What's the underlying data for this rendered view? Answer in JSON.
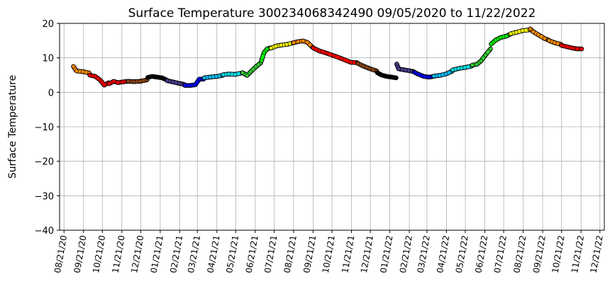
{
  "chart_data": {
    "type": "scatter",
    "title": "Surface Temperature 300234068342490  09/05/2020 to 11/22/2022",
    "xlabel": "",
    "ylabel": "Surface Temperature",
    "ylim": [
      -40,
      20
    ],
    "yticks": [
      20,
      10,
      0,
      -10,
      -20,
      -30,
      -40
    ],
    "yticklabels": [
      "20",
      "10",
      "0",
      "−10",
      "−20",
      "−30",
      "−40"
    ],
    "xlim": [
      "2020-08-14",
      "2022-12-28"
    ],
    "xticks": [
      "2020-08-21",
      "2020-09-21",
      "2020-10-21",
      "2020-11-21",
      "2020-12-21",
      "2021-01-21",
      "2021-02-21",
      "2021-03-21",
      "2021-04-21",
      "2021-05-21",
      "2021-06-21",
      "2021-07-21",
      "2021-08-21",
      "2021-09-21",
      "2021-10-21",
      "2021-11-21",
      "2021-12-21",
      "2022-01-21",
      "2022-02-21",
      "2022-03-21",
      "2022-04-21",
      "2022-05-21",
      "2022-06-21",
      "2022-07-21",
      "2022-08-21",
      "2022-09-21",
      "2022-10-21",
      "2022-11-21",
      "2022-12-21"
    ],
    "xticklabels": [
      "08/21/20",
      "09/21/20",
      "10/21/20",
      "11/21/20",
      "12/21/20",
      "01/21/21",
      "02/21/21",
      "03/21/21",
      "04/21/21",
      "05/21/21",
      "06/21/21",
      "07/21/21",
      "08/21/21",
      "09/21/21",
      "10/21/21",
      "11/21/21",
      "12/21/21",
      "01/21/22",
      "02/21/22",
      "03/21/22",
      "04/21/22",
      "05/21/22",
      "06/21/22",
      "07/21/22",
      "08/21/22",
      "09/21/22",
      "10/21/22",
      "11/21/22",
      "12/21/22"
    ],
    "grid": true,
    "monthly_colors": [
      "#ff8c00",
      "#ff0000",
      "#8b4513",
      "#000000",
      "#483d8b",
      "#0000ff",
      "#00bfff",
      "#00e5ee",
      "#32cd32",
      "#00ff00",
      "#ffff00",
      "#ff8c00"
    ],
    "series": [
      {
        "month": 9,
        "color": "#ff8c00",
        "points": [
          [
            "2020-09-05",
            7.5
          ],
          [
            "2020-09-10",
            6.2
          ],
          [
            "2020-09-20",
            6.0
          ],
          [
            "2020-09-30",
            5.6
          ]
        ]
      },
      {
        "month": 10,
        "color": "#ff0000",
        "points": [
          [
            "2020-10-01",
            5.0
          ],
          [
            "2020-10-10",
            4.6
          ],
          [
            "2020-10-18",
            3.5
          ],
          [
            "2020-10-24",
            2.1
          ],
          [
            "2020-10-31",
            2.8
          ]
        ]
      },
      {
        "month": 11,
        "color": "#ff0000",
        "points": [
          [
            "2020-11-01",
            2.5
          ],
          [
            "2020-11-08",
            3.2
          ],
          [
            "2020-11-15",
            2.8
          ],
          [
            "2020-11-22",
            3.0
          ],
          [
            "2020-11-30",
            3.2
          ]
        ]
      },
      {
        "month": 12,
        "color": "#8b4513",
        "points": [
          [
            "2020-12-01",
            3.2
          ],
          [
            "2020-12-10",
            3.1
          ],
          [
            "2020-12-20",
            3.2
          ],
          [
            "2020-12-31",
            3.6
          ]
        ]
      },
      {
        "month": 1,
        "color": "#000000",
        "points": [
          [
            "2021-01-01",
            4.3
          ],
          [
            "2021-01-08",
            4.6
          ],
          [
            "2021-01-16",
            4.4
          ],
          [
            "2021-01-24",
            4.2
          ],
          [
            "2021-01-31",
            3.6
          ]
        ]
      },
      {
        "month": 2,
        "color": "#483d8b",
        "points": [
          [
            "2021-02-01",
            3.4
          ],
          [
            "2021-02-10",
            3.0
          ],
          [
            "2021-02-20",
            2.6
          ],
          [
            "2021-02-28",
            2.3
          ]
        ]
      },
      {
        "month": 3,
        "color": "#0000ff",
        "points": [
          [
            "2021-03-01",
            2.0
          ],
          [
            "2021-03-10",
            2.0
          ],
          [
            "2021-03-18",
            2.2
          ],
          [
            "2021-03-24",
            3.8
          ],
          [
            "2021-03-31",
            3.8
          ]
        ]
      },
      {
        "month": 4,
        "color": "#00bfff",
        "points": [
          [
            "2021-04-01",
            4.2
          ],
          [
            "2021-04-10",
            4.4
          ],
          [
            "2021-04-20",
            4.6
          ],
          [
            "2021-04-30",
            4.9
          ]
        ]
      },
      {
        "month": 5,
        "color": "#00e5ee",
        "points": [
          [
            "2021-05-01",
            5.1
          ],
          [
            "2021-05-10",
            5.3
          ],
          [
            "2021-05-20",
            5.2
          ],
          [
            "2021-05-31",
            5.6
          ]
        ]
      },
      {
        "month": 6,
        "color": "#32cd32",
        "points": [
          [
            "2021-06-01",
            5.7
          ],
          [
            "2021-06-08",
            4.9
          ],
          [
            "2021-06-14",
            6.0
          ],
          [
            "2021-06-22",
            7.4
          ],
          [
            "2021-06-30",
            8.6
          ]
        ]
      },
      {
        "month": 7,
        "color": "#00ff00",
        "points": [
          [
            "2021-07-01",
            9.2
          ],
          [
            "2021-07-05",
            11.5
          ],
          [
            "2021-07-10",
            12.6
          ],
          [
            "2021-07-15",
            12.9
          ]
        ]
      },
      {
        "month": 7,
        "color": "#ffff00",
        "points": [
          [
            "2021-07-16",
            12.8
          ],
          [
            "2021-07-24",
            13.4
          ],
          [
            "2021-08-01",
            13.7
          ],
          [
            "2021-08-10",
            13.9
          ],
          [
            "2021-08-20",
            14.3
          ]
        ]
      },
      {
        "month": 8,
        "color": "#ff8c00",
        "points": [
          [
            "2021-08-21",
            14.4
          ],
          [
            "2021-08-28",
            14.7
          ],
          [
            "2021-09-05",
            14.9
          ],
          [
            "2021-09-12",
            14.5
          ],
          [
            "2021-09-20",
            13.1
          ]
        ]
      },
      {
        "month": 9,
        "color": "#ff0000",
        "points": [
          [
            "2021-09-21",
            12.9
          ],
          [
            "2021-10-01",
            12.0
          ],
          [
            "2021-10-12",
            11.4
          ],
          [
            "2021-10-24",
            10.6
          ],
          [
            "2021-11-05",
            9.8
          ],
          [
            "2021-11-20",
            8.7
          ],
          [
            "2021-11-30",
            8.6
          ]
        ]
      },
      {
        "month": 12,
        "color": "#8b4513",
        "points": [
          [
            "2021-12-01",
            8.4
          ],
          [
            "2021-12-10",
            7.6
          ],
          [
            "2021-12-20",
            6.9
          ],
          [
            "2021-12-31",
            6.2
          ]
        ]
      },
      {
        "month": 1,
        "color": "#000000",
        "points": [
          [
            "2022-01-01",
            5.7
          ],
          [
            "2022-01-08",
            5.0
          ],
          [
            "2022-01-16",
            4.6
          ],
          [
            "2022-01-24",
            4.4
          ],
          [
            "2022-01-31",
            4.2
          ]
        ]
      },
      {
        "month": 2,
        "color": "#483d8b",
        "points": [
          [
            "2022-02-01",
            8.2
          ],
          [
            "2022-02-04",
            6.8
          ],
          [
            "2022-02-10",
            6.6
          ],
          [
            "2022-02-20",
            6.3
          ],
          [
            "2022-02-28",
            6.0
          ]
        ]
      },
      {
        "month": 3,
        "color": "#0000ff",
        "points": [
          [
            "2022-03-01",
            5.8
          ],
          [
            "2022-03-08",
            5.2
          ],
          [
            "2022-03-16",
            4.6
          ],
          [
            "2022-03-24",
            4.4
          ],
          [
            "2022-03-31",
            4.6
          ]
        ]
      },
      {
        "month": 4,
        "color": "#00bfff",
        "points": [
          [
            "2022-04-01",
            4.7
          ],
          [
            "2022-04-10",
            4.9
          ],
          [
            "2022-04-20",
            5.3
          ],
          [
            "2022-04-30",
            6.1
          ]
        ]
      },
      {
        "month": 5,
        "color": "#00e5ee",
        "points": [
          [
            "2022-05-01",
            6.5
          ],
          [
            "2022-05-10",
            6.9
          ],
          [
            "2022-05-20",
            7.2
          ],
          [
            "2022-05-31",
            7.6
          ]
        ]
      },
      {
        "month": 6,
        "color": "#32cd32",
        "points": [
          [
            "2022-06-01",
            7.9
          ],
          [
            "2022-06-08",
            8.1
          ],
          [
            "2022-06-15",
            9.1
          ],
          [
            "2022-06-22",
            10.8
          ],
          [
            "2022-06-30",
            12.6
          ]
        ]
      },
      {
        "month": 7,
        "color": "#00ff00",
        "points": [
          [
            "2022-07-01",
            14.0
          ],
          [
            "2022-07-08",
            15.1
          ],
          [
            "2022-07-16",
            15.9
          ],
          [
            "2022-07-25",
            16.3
          ],
          [
            "2022-07-31",
            16.8
          ]
        ]
      },
      {
        "month": 8,
        "color": "#ffff00",
        "points": [
          [
            "2022-08-01",
            17.0
          ],
          [
            "2022-08-10",
            17.4
          ],
          [
            "2022-08-20",
            17.9
          ],
          [
            "2022-08-31",
            18.1
          ]
        ]
      },
      {
        "month": 9,
        "color": "#ff8c00",
        "points": [
          [
            "2022-09-01",
            18.4
          ],
          [
            "2022-09-06",
            17.6
          ],
          [
            "2022-09-14",
            16.7
          ],
          [
            "2022-09-24",
            15.6
          ],
          [
            "2022-09-30",
            15.2
          ]
        ]
      },
      {
        "month": 10,
        "color": "#ff8c00",
        "points": [
          [
            "2022-10-01",
            15.0
          ],
          [
            "2022-10-10",
            14.4
          ],
          [
            "2022-10-20",
            13.9
          ]
        ]
      },
      {
        "month": 10,
        "color": "#ff0000",
        "points": [
          [
            "2022-10-21",
            13.6
          ],
          [
            "2022-10-30",
            13.2
          ],
          [
            "2022-11-08",
            12.8
          ],
          [
            "2022-11-15",
            12.6
          ],
          [
            "2022-11-22",
            12.6
          ]
        ]
      }
    ]
  }
}
